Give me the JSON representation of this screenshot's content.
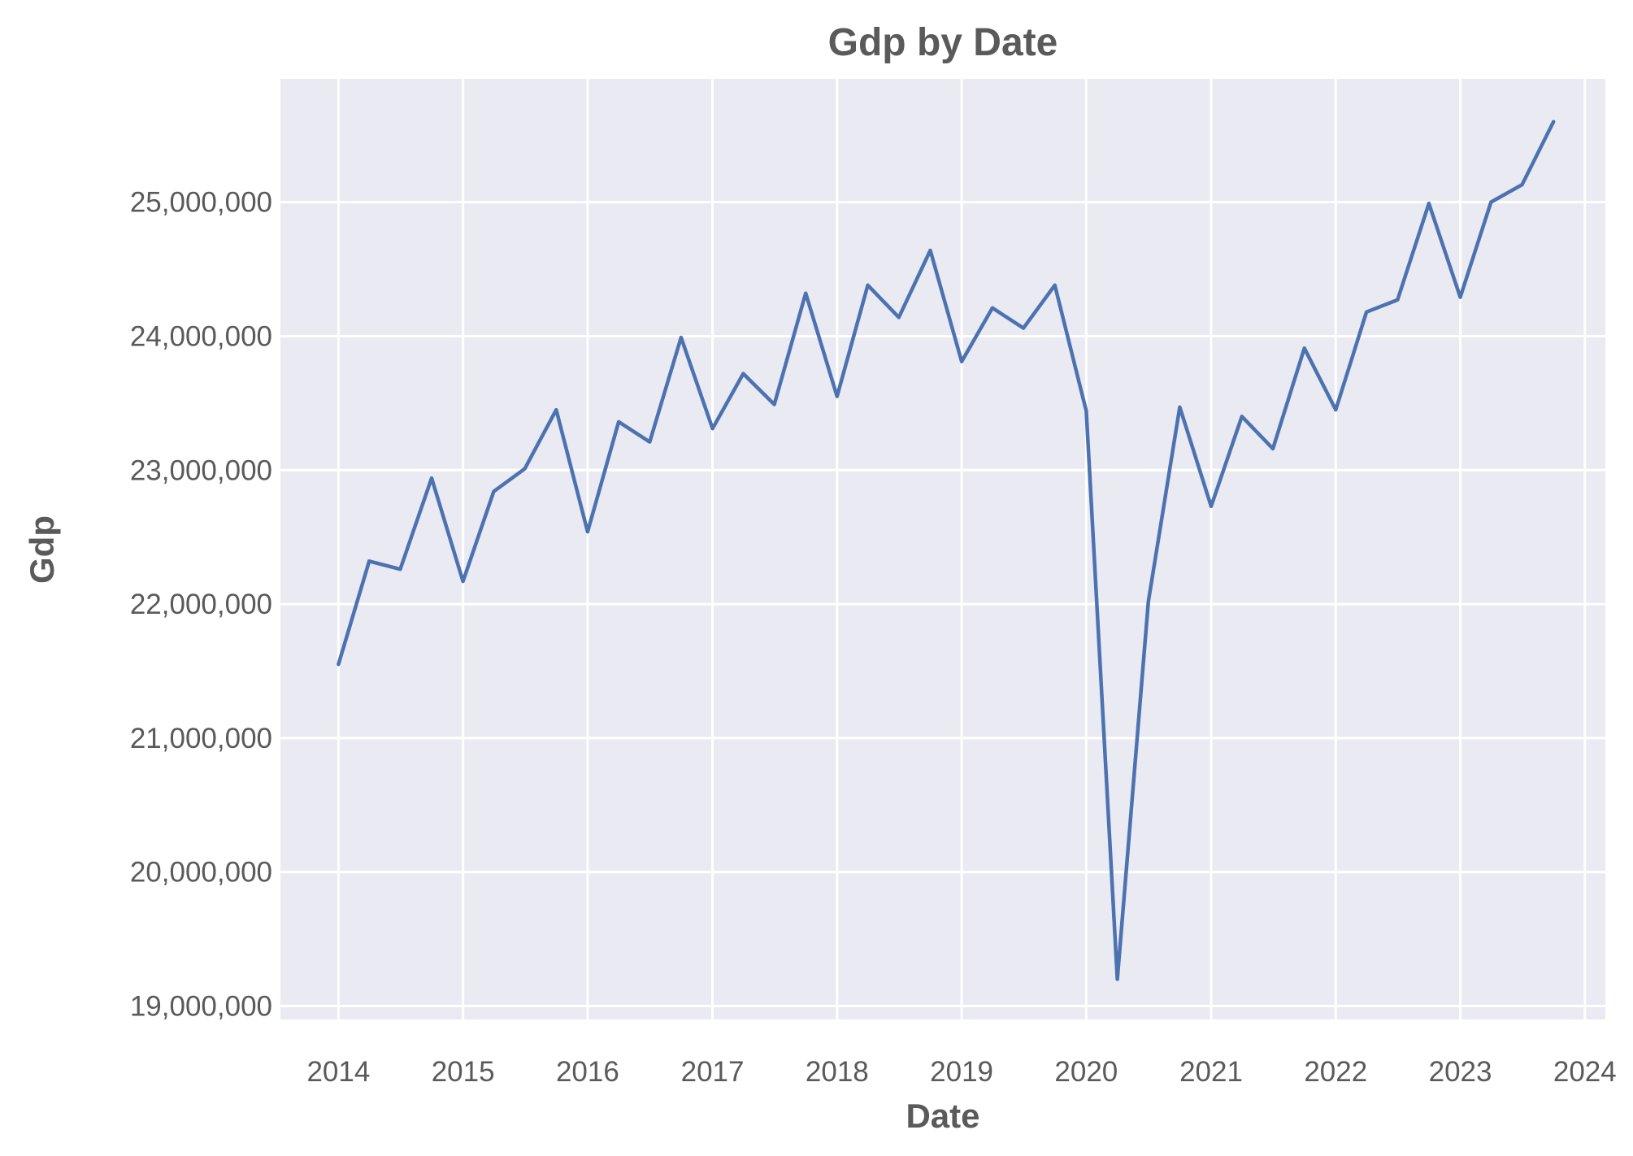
{
  "chart_data": {
    "type": "line",
    "title": "Gdp by Date",
    "xlabel": "Date",
    "ylabel": "Gdp",
    "x_tick_labels": [
      "2014",
      "2015",
      "2016",
      "2017",
      "2018",
      "2019",
      "2020",
      "2021",
      "2022",
      "2023",
      "2024"
    ],
    "y_tick_labels": [
      "19,000,000",
      "20,000,000",
      "21,000,000",
      "22,000,000",
      "23,000,000",
      "24,000,000",
      "25,000,000"
    ],
    "xlim": [
      "2013-07-15",
      "2024-03-01"
    ],
    "ylim": [
      18900000,
      25920000
    ],
    "grid": true,
    "colors": {
      "plot_background": "#eaeaf2",
      "grid": "#ffffff",
      "line": "#4c72b0",
      "text": "#5a5a5a"
    },
    "series": [
      {
        "x": [
          "2014-01-01",
          "2014-04-01",
          "2014-07-01",
          "2014-10-01",
          "2015-01-01",
          "2015-04-01",
          "2015-07-01",
          "2015-10-01",
          "2016-01-01",
          "2016-04-01",
          "2016-07-01",
          "2016-10-01",
          "2017-01-01",
          "2017-04-01",
          "2017-07-01",
          "2017-10-01",
          "2018-01-01",
          "2018-04-01",
          "2018-07-01",
          "2018-10-01",
          "2019-01-01",
          "2019-04-01",
          "2019-07-01",
          "2019-10-01",
          "2020-01-01",
          "2020-04-01",
          "2020-07-01",
          "2020-10-01",
          "2021-01-01",
          "2021-04-01",
          "2021-07-01",
          "2021-10-01",
          "2022-01-01",
          "2022-04-01",
          "2022-07-01",
          "2022-10-01",
          "2023-01-01",
          "2023-04-01",
          "2023-07-01",
          "2023-10-01"
        ],
        "values": [
          21550000,
          22320000,
          22260000,
          22940000,
          22170000,
          22840000,
          23010000,
          23450000,
          22540000,
          23360000,
          23210000,
          23990000,
          23310000,
          23720000,
          23490000,
          24320000,
          23550000,
          24380000,
          24140000,
          24640000,
          23810000,
          24210000,
          24060000,
          24380000,
          23440000,
          19200000,
          22020000,
          23470000,
          22730000,
          23400000,
          23160000,
          23910000,
          23450000,
          24180000,
          24270000,
          24990000,
          24290000,
          25000000,
          25130000,
          25600000
        ]
      }
    ]
  }
}
